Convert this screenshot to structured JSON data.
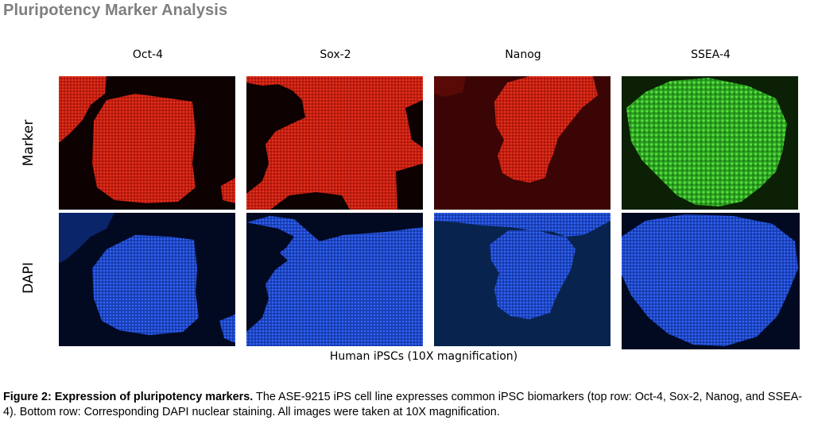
{
  "title": "Pluripotency Marker Analysis",
  "columns": [
    "Oct-4",
    "Sox-2",
    "Nanog",
    "SSEA-4"
  ],
  "rows": [
    "Marker",
    "DAPI"
  ],
  "panels": [
    {
      "row": "Marker",
      "column": "Oct-4",
      "stain": "red"
    },
    {
      "row": "Marker",
      "column": "Sox-2",
      "stain": "red"
    },
    {
      "row": "Marker",
      "column": "Nanog",
      "stain": "red"
    },
    {
      "row": "Marker",
      "column": "SSEA-4",
      "stain": "green"
    },
    {
      "row": "DAPI",
      "column": "Oct-4",
      "stain": "blue"
    },
    {
      "row": "DAPI",
      "column": "Sox-2",
      "stain": "blue"
    },
    {
      "row": "DAPI",
      "column": "Nanog",
      "stain": "blue"
    },
    {
      "row": "DAPI",
      "column": "SSEA-4",
      "stain": "blue"
    }
  ],
  "stain_colors": {
    "red": "#d42818",
    "green": "#38c828",
    "blue": "#2454e0"
  },
  "subtitle": "Human iPSCs (10X magnification)",
  "caption": {
    "bold": "Figure 2: Expression of pluripotency markers.",
    "text": " The ASE-9215 iPS cell line expresses common iPSC biomarkers (top row: Oct-4, Sox-2, Nanog, and SSEA-4). Bottom row: Corresponding DAPI nuclear staining. All images were taken at 10X magnification."
  }
}
